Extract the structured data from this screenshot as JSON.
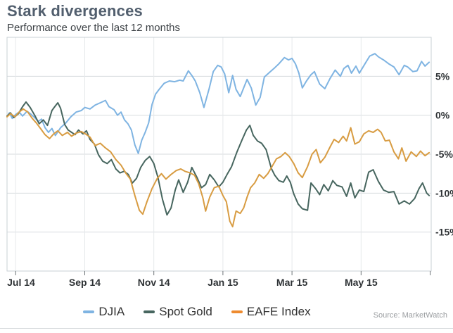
{
  "header": {
    "title": "Stark divergences",
    "subtitle": "Performance over the last 12 months"
  },
  "source_label": "Source: MarketWatch",
  "colors": {
    "title": "#525f6e",
    "axis_text": "#2e3235",
    "grid_h": "#d7dbde",
    "grid_v": "#e6e9eb",
    "plot_border": "#c9d0d5",
    "djia_blue": "#7fb4e2",
    "gold_teal": "#47665f",
    "eafe_orange": "#d89c42",
    "eafe_legend_orange": "#ee8b2f"
  },
  "chart_data": {
    "type": "line",
    "title": "Stark divergences",
    "subtitle": "Performance over the last 12 months",
    "xlabel": "",
    "ylabel": "",
    "x_unit": "months since Jul 2014",
    "x_range": [
      -0.25,
      12.03
    ],
    "y_range": [
      -20,
      10
    ],
    "grid": true,
    "legend_position": "bottom-center",
    "x_ticks": [
      {
        "t": 0,
        "label": "Jul 14"
      },
      {
        "t": 2,
        "label": "Sep 14"
      },
      {
        "t": 4,
        "label": "Nov 14"
      },
      {
        "t": 6,
        "label": "Jan 15"
      },
      {
        "t": 8,
        "label": "Mar 15"
      },
      {
        "t": 10,
        "label": "May 15"
      },
      {
        "t": 12,
        "label": ""
      }
    ],
    "y_ticks": [
      {
        "v": 5,
        "label": "5%"
      },
      {
        "v": 0,
        "label": "0%"
      },
      {
        "v": -5,
        "label": "-5%"
      },
      {
        "v": -10,
        "label": "-10%"
      },
      {
        "v": -15,
        "label": "-15%"
      }
    ],
    "series": [
      {
        "name": "DJIA",
        "color": "#7fb4e2",
        "legend_color": "#7fb4e2",
        "points": [
          [
            -0.25,
            -0.2
          ],
          [
            -0.18,
            0.3
          ],
          [
            -0.1,
            -0.4
          ],
          [
            0,
            0.1
          ],
          [
            0.1,
            0.4
          ],
          [
            0.2,
            -0.1
          ],
          [
            0.33,
            0.5
          ],
          [
            0.45,
            0.1
          ],
          [
            0.55,
            -0.3
          ],
          [
            0.65,
            -0.8
          ],
          [
            0.75,
            -0.5
          ],
          [
            0.85,
            -1.6
          ],
          [
            0.95,
            -2.2
          ],
          [
            1.05,
            -1.7
          ],
          [
            1.15,
            -2.6
          ],
          [
            1.3,
            -1.6
          ],
          [
            1.45,
            -1.0
          ],
          [
            1.6,
            -0.2
          ],
          [
            1.75,
            0.4
          ],
          [
            1.9,
            0.6
          ],
          [
            2.0,
            1.0
          ],
          [
            2.15,
            0.8
          ],
          [
            2.3,
            1.3
          ],
          [
            2.45,
            1.6
          ],
          [
            2.6,
            1.9
          ],
          [
            2.7,
            1.1
          ],
          [
            2.85,
            0.7
          ],
          [
            2.95,
            0.0
          ],
          [
            3.05,
            0.4
          ],
          [
            3.15,
            -0.6
          ],
          [
            3.25,
            -1.1
          ],
          [
            3.35,
            -1.9
          ],
          [
            3.45,
            -3.8
          ],
          [
            3.55,
            -4.9
          ],
          [
            3.65,
            -3.2
          ],
          [
            3.75,
            -2.2
          ],
          [
            3.85,
            -1.0
          ],
          [
            3.95,
            1.4
          ],
          [
            4.05,
            2.7
          ],
          [
            4.15,
            3.3
          ],
          [
            4.3,
            4.1
          ],
          [
            4.45,
            4.4
          ],
          [
            4.6,
            4.3
          ],
          [
            4.75,
            4.5
          ],
          [
            4.85,
            4.4
          ],
          [
            5.0,
            5.7
          ],
          [
            5.1,
            5.1
          ],
          [
            5.2,
            4.4
          ],
          [
            5.33,
            2.9
          ],
          [
            5.45,
            1.0
          ],
          [
            5.6,
            3.4
          ],
          [
            5.72,
            5.6
          ],
          [
            5.85,
            6.4
          ],
          [
            5.95,
            6.2
          ],
          [
            6.05,
            5.3
          ],
          [
            6.17,
            2.9
          ],
          [
            6.28,
            5.1
          ],
          [
            6.38,
            3.3
          ],
          [
            6.5,
            2.4
          ],
          [
            6.6,
            3.5
          ],
          [
            6.7,
            4.6
          ],
          [
            6.82,
            3.5
          ],
          [
            6.95,
            1.3
          ],
          [
            7.08,
            2.3
          ],
          [
            7.2,
            4.9
          ],
          [
            7.35,
            5.5
          ],
          [
            7.5,
            6.1
          ],
          [
            7.62,
            6.6
          ],
          [
            7.78,
            7.4
          ],
          [
            7.9,
            7.1
          ],
          [
            8.0,
            7.3
          ],
          [
            8.1,
            6.6
          ],
          [
            8.2,
            5.4
          ],
          [
            8.3,
            3.5
          ],
          [
            8.42,
            4.4
          ],
          [
            8.55,
            5.2
          ],
          [
            8.65,
            5.6
          ],
          [
            8.8,
            4.0
          ],
          [
            8.95,
            3.4
          ],
          [
            9.1,
            4.7
          ],
          [
            9.25,
            5.8
          ],
          [
            9.4,
            5.0
          ],
          [
            9.5,
            6.0
          ],
          [
            9.62,
            6.4
          ],
          [
            9.72,
            5.4
          ],
          [
            9.85,
            6.3
          ],
          [
            9.95,
            5.4
          ],
          [
            10.1,
            6.5
          ],
          [
            10.25,
            7.6
          ],
          [
            10.4,
            7.9
          ],
          [
            10.5,
            7.5
          ],
          [
            10.65,
            7.1
          ],
          [
            10.8,
            6.6
          ],
          [
            10.95,
            6.2
          ],
          [
            11.1,
            5.2
          ],
          [
            11.25,
            6.4
          ],
          [
            11.35,
            6.2
          ],
          [
            11.5,
            5.6
          ],
          [
            11.62,
            5.7
          ],
          [
            11.75,
            6.9
          ],
          [
            11.85,
            6.3
          ],
          [
            11.97,
            6.8
          ]
        ]
      },
      {
        "name": "Spot Gold",
        "color": "#47665f",
        "legend_color": "#47665f",
        "points": [
          [
            -0.25,
            -0.1
          ],
          [
            -0.15,
            0.3
          ],
          [
            -0.05,
            -0.3
          ],
          [
            0.08,
            0.2
          ],
          [
            0.2,
            1.1
          ],
          [
            0.3,
            1.7
          ],
          [
            0.42,
            1.0
          ],
          [
            0.55,
            0.0
          ],
          [
            0.68,
            -1.1
          ],
          [
            0.8,
            -0.6
          ],
          [
            0.92,
            -1.3
          ],
          [
            1.05,
            0.6
          ],
          [
            1.15,
            1.2
          ],
          [
            1.22,
            1.6
          ],
          [
            1.3,
            0.9
          ],
          [
            1.42,
            -1.2
          ],
          [
            1.52,
            -1.9
          ],
          [
            1.62,
            -2.2
          ],
          [
            1.72,
            -2.5
          ],
          [
            1.82,
            -1.9
          ],
          [
            1.95,
            -2.4
          ],
          [
            2.05,
            -2.0
          ],
          [
            2.15,
            -3.1
          ],
          [
            2.28,
            -3.7
          ],
          [
            2.4,
            -5.1
          ],
          [
            2.52,
            -5.9
          ],
          [
            2.65,
            -6.2
          ],
          [
            2.77,
            -5.7
          ],
          [
            2.9,
            -6.9
          ],
          [
            3.02,
            -7.4
          ],
          [
            3.14,
            -7.2
          ],
          [
            3.26,
            -7.6
          ],
          [
            3.38,
            -8.7
          ],
          [
            3.5,
            -8.1
          ],
          [
            3.62,
            -6.7
          ],
          [
            3.75,
            -5.8
          ],
          [
            3.88,
            -5.3
          ],
          [
            4.0,
            -6.2
          ],
          [
            4.12,
            -8.0
          ],
          [
            4.25,
            -10.8
          ],
          [
            4.38,
            -12.8
          ],
          [
            4.5,
            -11.9
          ],
          [
            4.62,
            -9.6
          ],
          [
            4.72,
            -8.3
          ],
          [
            4.85,
            -9.9
          ],
          [
            4.98,
            -8.6
          ],
          [
            5.1,
            -6.7
          ],
          [
            5.25,
            -8.0
          ],
          [
            5.38,
            -9.3
          ],
          [
            5.5,
            -8.9
          ],
          [
            5.62,
            -7.6
          ],
          [
            5.75,
            -8.3
          ],
          [
            5.88,
            -9.2
          ],
          [
            6.0,
            -8.6
          ],
          [
            6.12,
            -7.6
          ],
          [
            6.25,
            -6.6
          ],
          [
            6.4,
            -4.8
          ],
          [
            6.55,
            -3.2
          ],
          [
            6.68,
            -1.9
          ],
          [
            6.78,
            -1.3
          ],
          [
            6.88,
            -2.6
          ],
          [
            7.0,
            -3.3
          ],
          [
            7.12,
            -3.6
          ],
          [
            7.25,
            -4.4
          ],
          [
            7.4,
            -6.8
          ],
          [
            7.5,
            -7.7
          ],
          [
            7.62,
            -8.4
          ],
          [
            7.75,
            -8.6
          ],
          [
            7.85,
            -7.8
          ],
          [
            7.95,
            -8.6
          ],
          [
            8.05,
            -10.1
          ],
          [
            8.18,
            -11.4
          ],
          [
            8.3,
            -12.0
          ],
          [
            8.45,
            -12.2
          ],
          [
            8.55,
            -8.7
          ],
          [
            8.68,
            -9.4
          ],
          [
            8.8,
            -10.2
          ],
          [
            8.92,
            -8.9
          ],
          [
            9.05,
            -9.7
          ],
          [
            9.18,
            -8.4
          ],
          [
            9.3,
            -9.0
          ],
          [
            9.45,
            -9.2
          ],
          [
            9.58,
            -10.4
          ],
          [
            9.7,
            -8.7
          ],
          [
            9.82,
            -10.6
          ],
          [
            9.95,
            -9.6
          ],
          [
            10.08,
            -9.8
          ],
          [
            10.22,
            -7.3
          ],
          [
            10.35,
            -7.0
          ],
          [
            10.5,
            -8.5
          ],
          [
            10.65,
            -9.6
          ],
          [
            10.8,
            -9.9
          ],
          [
            10.95,
            -9.8
          ],
          [
            11.1,
            -11.4
          ],
          [
            11.25,
            -11.0
          ],
          [
            11.4,
            -11.4
          ],
          [
            11.55,
            -10.7
          ],
          [
            11.68,
            -9.4
          ],
          [
            11.78,
            -8.7
          ],
          [
            11.9,
            -10.0
          ],
          [
            11.97,
            -10.3
          ]
        ]
      },
      {
        "name": "EAFE Index",
        "color": "#d89c42",
        "legend_color": "#ee8b2f",
        "points": [
          [
            -0.25,
            -0.2
          ],
          [
            -0.15,
            0.2
          ],
          [
            -0.02,
            -0.2
          ],
          [
            0.1,
            0.4
          ],
          [
            0.22,
            0.8
          ],
          [
            0.35,
            0.4
          ],
          [
            0.48,
            -0.4
          ],
          [
            0.6,
            -1.0
          ],
          [
            0.72,
            -1.7
          ],
          [
            0.85,
            -2.5
          ],
          [
            0.98,
            -3.0
          ],
          [
            1.1,
            -2.4
          ],
          [
            1.22,
            -2.0
          ],
          [
            1.35,
            -2.6
          ],
          [
            1.5,
            -2.2
          ],
          [
            1.62,
            -2.7
          ],
          [
            1.75,
            -2.3
          ],
          [
            1.9,
            -2.1
          ],
          [
            2.02,
            -2.4
          ],
          [
            2.15,
            -2.8
          ],
          [
            2.3,
            -3.9
          ],
          [
            2.45,
            -3.6
          ],
          [
            2.6,
            -4.2
          ],
          [
            2.75,
            -4.7
          ],
          [
            2.9,
            -5.7
          ],
          [
            3.05,
            -6.4
          ],
          [
            3.2,
            -7.5
          ],
          [
            3.32,
            -8.2
          ],
          [
            3.45,
            -10.3
          ],
          [
            3.58,
            -12.2
          ],
          [
            3.68,
            -12.7
          ],
          [
            3.8,
            -11.1
          ],
          [
            3.95,
            -9.4
          ],
          [
            4.1,
            -8.1
          ],
          [
            4.22,
            -7.5
          ],
          [
            4.35,
            -8.2
          ],
          [
            4.5,
            -7.6
          ],
          [
            4.65,
            -7.1
          ],
          [
            4.78,
            -6.9
          ],
          [
            4.9,
            -7.2
          ],
          [
            5.05,
            -7.4
          ],
          [
            5.18,
            -7.7
          ],
          [
            5.3,
            -8.8
          ],
          [
            5.42,
            -10.6
          ],
          [
            5.5,
            -12.3
          ],
          [
            5.62,
            -10.5
          ],
          [
            5.75,
            -9.3
          ],
          [
            5.88,
            -9.1
          ],
          [
            6.0,
            -10.3
          ],
          [
            6.1,
            -11.1
          ],
          [
            6.2,
            -13.6
          ],
          [
            6.28,
            -14.3
          ],
          [
            6.38,
            -12.3
          ],
          [
            6.5,
            -12.6
          ],
          [
            6.6,
            -11.9
          ],
          [
            6.7,
            -10.5
          ],
          [
            6.8,
            -9.3
          ],
          [
            6.92,
            -8.7
          ],
          [
            7.05,
            -7.6
          ],
          [
            7.18,
            -8.1
          ],
          [
            7.3,
            -7.5
          ],
          [
            7.42,
            -6.6
          ],
          [
            7.55,
            -5.6
          ],
          [
            7.68,
            -5.3
          ],
          [
            7.8,
            -4.8
          ],
          [
            7.92,
            -5.3
          ],
          [
            8.05,
            -6.2
          ],
          [
            8.18,
            -7.4
          ],
          [
            8.3,
            -8.0
          ],
          [
            8.45,
            -6.6
          ],
          [
            8.58,
            -5.0
          ],
          [
            8.7,
            -4.4
          ],
          [
            8.82,
            -6.1
          ],
          [
            8.95,
            -5.4
          ],
          [
            9.1,
            -4.1
          ],
          [
            9.22,
            -3.1
          ],
          [
            9.35,
            -3.5
          ],
          [
            9.48,
            -2.7
          ],
          [
            9.58,
            -3.3
          ],
          [
            9.7,
            -1.6
          ],
          [
            9.82,
            -3.7
          ],
          [
            9.95,
            -3.4
          ],
          [
            10.08,
            -2.4
          ],
          [
            10.22,
            -2.0
          ],
          [
            10.35,
            -2.2
          ],
          [
            10.48,
            -1.8
          ],
          [
            10.58,
            -2.2
          ],
          [
            10.7,
            -3.3
          ],
          [
            10.82,
            -3.2
          ],
          [
            10.95,
            -4.7
          ],
          [
            11.08,
            -5.6
          ],
          [
            11.18,
            -4.2
          ],
          [
            11.3,
            -5.9
          ],
          [
            11.45,
            -4.7
          ],
          [
            11.6,
            -5.3
          ],
          [
            11.72,
            -4.6
          ],
          [
            11.85,
            -5.2
          ],
          [
            11.97,
            -4.8
          ]
        ]
      }
    ]
  }
}
